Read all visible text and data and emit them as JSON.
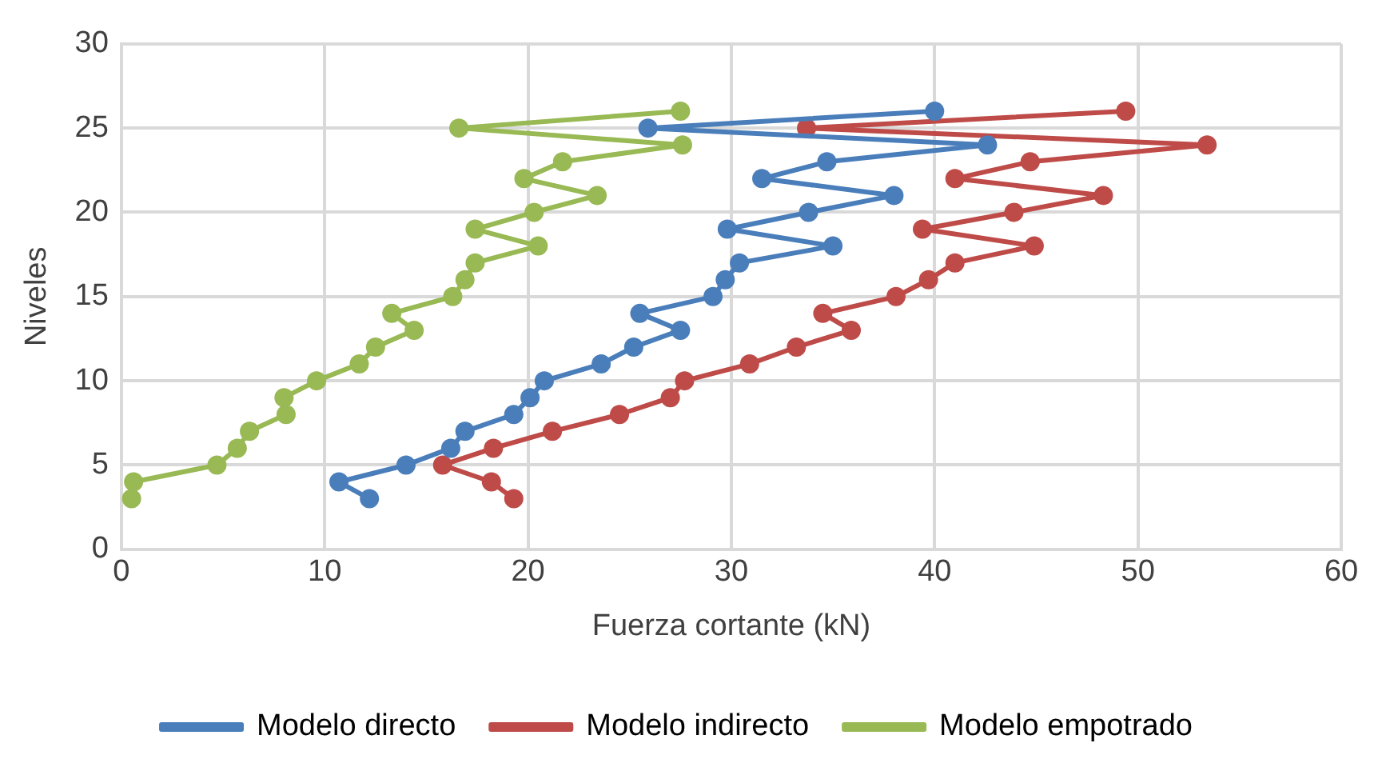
{
  "chart_data": {
    "type": "line",
    "xlabel": "Fuerza cortante (kN)",
    "ylabel": "Niveles",
    "xlim": [
      0,
      60
    ],
    "xticks": [
      0,
      10,
      20,
      30,
      40,
      50,
      60
    ],
    "ylim": [
      0,
      30
    ],
    "yticks": [
      0,
      5,
      10,
      15,
      20,
      25,
      30
    ],
    "grid": true,
    "legend": "bottom",
    "marker": "circle",
    "line_style": "solid",
    "series": [
      {
        "name": "Modelo directo",
        "color": "#4a7ebb",
        "x": [
          12.2,
          10.7,
          14,
          16.2,
          16.9,
          19.3,
          20.1,
          20.8,
          23.6,
          25.2,
          27.5,
          25.5,
          29.1,
          29.7,
          30.4,
          35,
          29.8,
          33.8,
          38,
          31.5,
          34.7,
          42.6,
          25.9,
          40
        ],
        "values": [
          3,
          4,
          5,
          6,
          7,
          8,
          9,
          10,
          11,
          12,
          13,
          14,
          15,
          16,
          17,
          18,
          19,
          20,
          21,
          22,
          23,
          24,
          25,
          26
        ]
      },
      {
        "name": "Modelo indirecto",
        "color": "#be4b48",
        "x": [
          19.3,
          18.2,
          15.8,
          18.3,
          21.2,
          24.5,
          27,
          27.7,
          30.9,
          33.2,
          35.9,
          34.5,
          38.1,
          39.7,
          41,
          44.9,
          39.4,
          43.9,
          48.3,
          41,
          44.7,
          53.4,
          33.7,
          49.4
        ],
        "values": [
          3,
          4,
          5,
          6,
          7,
          8,
          9,
          10,
          11,
          12,
          13,
          14,
          15,
          16,
          17,
          18,
          19,
          20,
          21,
          22,
          23,
          24,
          25,
          26
        ]
      },
      {
        "name": "Modelo empotrado",
        "color": "#98b954",
        "x": [
          0.5,
          0.6,
          4.7,
          5.7,
          6.3,
          8.1,
          8,
          9.6,
          11.7,
          12.5,
          14.4,
          13.3,
          16.3,
          16.9,
          17.4,
          20.5,
          17.4,
          20.3,
          23.4,
          19.8,
          21.7,
          27.6,
          16.6,
          27.5
        ],
        "values": [
          3,
          4,
          5,
          6,
          7,
          8,
          9,
          10,
          11,
          12,
          13,
          14,
          15,
          16,
          17,
          18,
          19,
          20,
          21,
          22,
          23,
          24,
          25,
          26
        ]
      }
    ]
  }
}
